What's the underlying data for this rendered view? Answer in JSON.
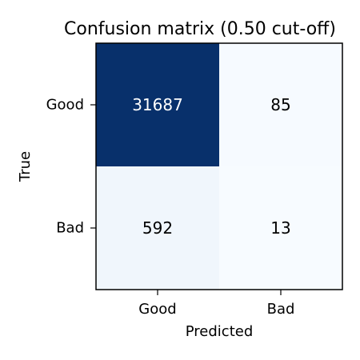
{
  "chart_data": {
    "type": "heatmap",
    "title": "Confusion matrix (0.50 cut-off)",
    "xlabel": "Predicted",
    "ylabel": "True",
    "x_categories": [
      "Good",
      "Bad"
    ],
    "y_categories": [
      "Good",
      "Bad"
    ],
    "values": [
      [
        31687,
        85
      ],
      [
        592,
        13
      ]
    ],
    "colormap": "Blues",
    "colors": {
      "max": "#08306b",
      "mid": "#eff5fc",
      "min": "#f7fbff",
      "text_on_dark": "#ffffff",
      "text_on_light": "#000000"
    }
  }
}
